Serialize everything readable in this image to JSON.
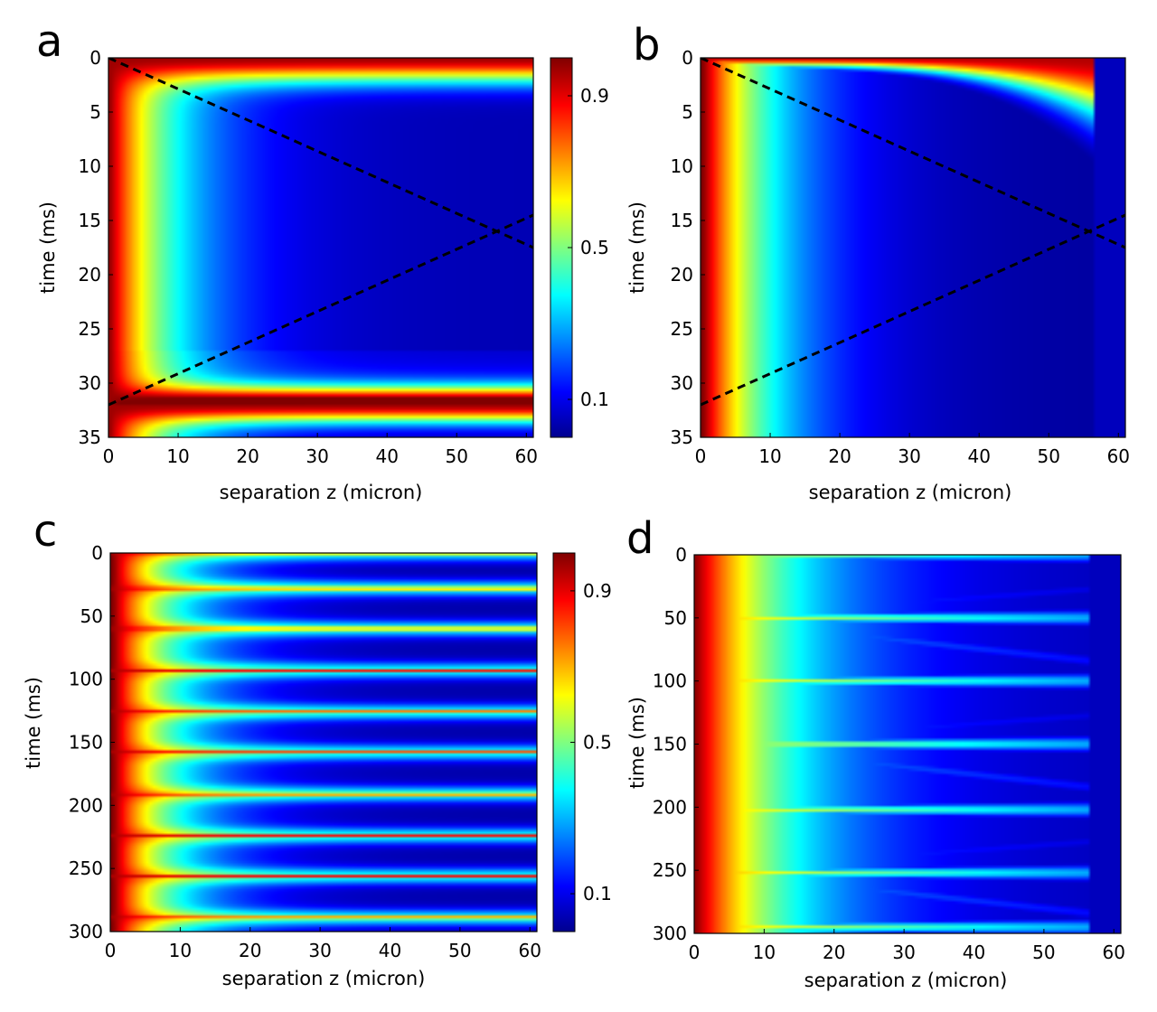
{
  "chart_data": [
    {
      "type": "heatmap",
      "panel_label": "a",
      "xlabel": "separation z (micron)",
      "ylabel": "time (ms)",
      "xlim": [
        0,
        61
      ],
      "ylim": [
        0,
        35
      ],
      "x_ticks": [
        0,
        10,
        20,
        30,
        40,
        50,
        60
      ],
      "y_ticks": [
        0,
        5,
        10,
        15,
        20,
        25,
        30,
        35
      ],
      "colorbar": {
        "range": [
          0,
          1
        ],
        "ticks": [
          0.1,
          0.5,
          0.9
        ]
      },
      "dashed_lines": [
        {
          "from": [
            0,
            0
          ],
          "to": [
            61,
            17.5
          ]
        },
        {
          "from": [
            0,
            32
          ],
          "to": [
            61,
            14.5
          ]
        }
      ],
      "features": "Spatially decaying activation (red at z=0 to blue by z~20); bright horizontal bands at t=0 and t~32 ms extending across all z; minimum near t~16 ms."
    },
    {
      "type": "heatmap",
      "panel_label": "b",
      "xlabel": "separation z (micron)",
      "ylabel": "time (ms)",
      "xlim": [
        0,
        61
      ],
      "ylim": [
        0,
        35
      ],
      "x_ticks": [
        0,
        10,
        20,
        30,
        40,
        50,
        60
      ],
      "y_ticks": [
        0,
        5,
        10,
        15,
        20,
        25,
        30,
        35
      ],
      "dashed_lines": [
        {
          "from": [
            0,
            0
          ],
          "to": [
            61,
            17.5
          ]
        },
        {
          "from": [
            0,
            32
          ],
          "to": [
            61,
            14.5
          ]
        }
      ],
      "features": "Single decaying front at t=0 curving to ~t=5 ms by z~56; uniform low value beyond z~56; no return band."
    },
    {
      "type": "heatmap",
      "panel_label": "c",
      "xlabel": "separation z (micron)",
      "ylabel": "time (ms)",
      "xlim": [
        0,
        61
      ],
      "ylim": [
        0,
        300
      ],
      "x_ticks": [
        0,
        10,
        20,
        30,
        40,
        50,
        60
      ],
      "y_ticks": [
        0,
        50,
        100,
        150,
        200,
        250,
        300
      ],
      "colorbar": {
        "range": [
          0,
          1
        ],
        "ticks": [
          0.1,
          0.5,
          0.9
        ]
      },
      "event_times": [
        0,
        28,
        60,
        93,
        126,
        158,
        191,
        224,
        256,
        289
      ],
      "features": "Periodic thin red horizontal bands (~every 32.5 ms) spanning all z, with cyan bulges that narrow outward."
    },
    {
      "type": "heatmap",
      "panel_label": "d",
      "xlabel": "separation z (micron)",
      "ylabel": "time (ms)",
      "xlim": [
        0,
        61
      ],
      "ylim": [
        0,
        300
      ],
      "x_ticks": [
        0,
        10,
        20,
        30,
        40,
        50,
        60
      ],
      "y_ticks": [
        0,
        50,
        100,
        150,
        200,
        250,
        300
      ],
      "event_times": [
        0,
        50,
        100,
        150,
        202,
        252,
        295
      ],
      "features": "Irregular events; diverging lobes from t~50, 150, 250 reaching z~50; activity absent beyond z~56."
    }
  ]
}
